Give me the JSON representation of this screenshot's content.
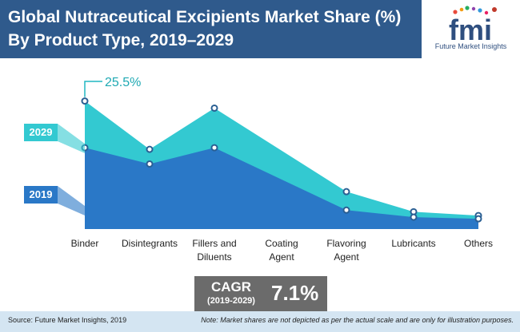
{
  "header": {
    "title": "Global Nutraceutical Excipients Market Share (%) By Product Type, 2019–2029"
  },
  "logo": {
    "mark": "fmi",
    "subtitle": "Future Market Insights"
  },
  "chart_data": {
    "type": "area",
    "categories": [
      "Binder",
      "Disintegrants",
      "Fillers and Diluents",
      "Coating Agent",
      "Flavoring Agent",
      "Lubricants",
      "Others"
    ],
    "series": [
      {
        "name": "2029",
        "values": [
          25.5,
          16.6,
          24.2,
          null,
          8.8,
          5.1,
          4.4
        ]
      },
      {
        "name": "2019",
        "values": [
          16.9,
          13.9,
          16.9,
          null,
          5.4,
          4.1,
          3.8
        ]
      }
    ],
    "annotations": [
      {
        "category": "Binder",
        "series": "2029",
        "text": "25.5%"
      }
    ],
    "colors": {
      "2029": "#33c9d1",
      "2019": "#2a78c7"
    },
    "grid": false,
    "legend": "left"
  },
  "cagr": {
    "label": "CAGR",
    "period": "(2019-2029)",
    "value": "7.1%"
  },
  "footer": {
    "source": "Source: Future Market Insights, 2019",
    "note": "Note: Market shares are not depicted as per the actual scale and are only for illustration purposes."
  }
}
